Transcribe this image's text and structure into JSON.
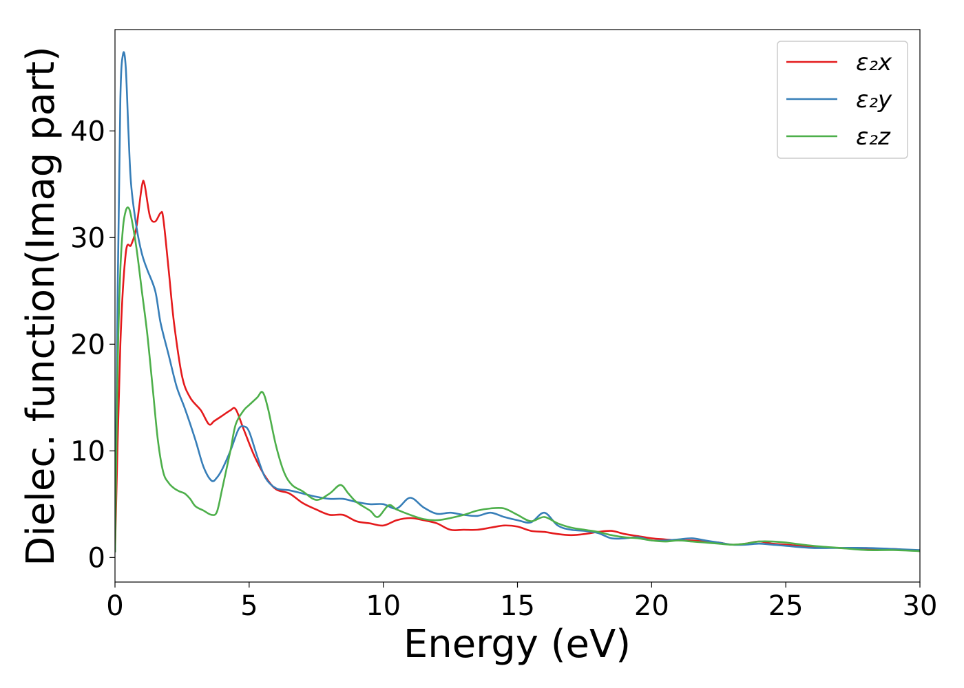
{
  "chart_data": {
    "type": "line",
    "xlabel": "Energy (eV)",
    "ylabel": "Dielec. function(Imag part)",
    "xlim": [
      0,
      30
    ],
    "ylim": [
      -2.3,
      49.5
    ],
    "xticks": [
      0,
      5,
      10,
      15,
      20,
      25,
      30
    ],
    "yticks": [
      0,
      10,
      20,
      30,
      40
    ],
    "grid": false,
    "legend_position": "top-right",
    "series": [
      {
        "name": "ε₂x",
        "color": "#e41a1c",
        "x": [
          0,
          0.2,
          0.4,
          0.6,
          0.8,
          1.0,
          1.1,
          1.3,
          1.5,
          1.7,
          1.8,
          2.0,
          2.2,
          2.5,
          2.8,
          3.2,
          3.5,
          3.7,
          4.0,
          4.3,
          4.5,
          4.8,
          5.2,
          5.6,
          6.0,
          6.5,
          7.0,
          7.5,
          8.0,
          8.5,
          9.0,
          9.5,
          10.0,
          10.5,
          11.0,
          11.5,
          12.0,
          12.5,
          13.0,
          13.5,
          14.0,
          14.5,
          15.0,
          15.5,
          16.0,
          16.5,
          17.0,
          17.5,
          18.0,
          18.5,
          19.0,
          19.5,
          20.0,
          20.5,
          21.0,
          21.5,
          22.0,
          22.5,
          23.0,
          23.5,
          24.0,
          24.5,
          25.0,
          26.0,
          27.0,
          28.0,
          29.0,
          30.0
        ],
        "y": [
          0.5,
          20,
          28.5,
          29.3,
          31,
          34.8,
          35.0,
          32,
          31.5,
          32.3,
          31.8,
          27,
          22,
          17,
          15,
          13.8,
          12.5,
          12.8,
          13.3,
          13.8,
          13.9,
          12,
          9.5,
          7.6,
          6.4,
          6.0,
          5.1,
          4.5,
          4.0,
          4.0,
          3.4,
          3.2,
          3.0,
          3.5,
          3.7,
          3.5,
          3.2,
          2.6,
          2.6,
          2.6,
          2.8,
          3.0,
          2.9,
          2.5,
          2.4,
          2.2,
          2.1,
          2.2,
          2.4,
          2.5,
          2.2,
          2.0,
          1.8,
          1.7,
          1.6,
          1.6,
          1.5,
          1.4,
          1.2,
          1.3,
          1.5,
          1.3,
          1.2,
          1.0,
          0.9,
          0.8,
          0.8,
          0.6
        ]
      },
      {
        "name": "ε₂y",
        "color": "#377eb8",
        "x": [
          0,
          0.1,
          0.2,
          0.3,
          0.4,
          0.5,
          0.6,
          0.8,
          1.0,
          1.2,
          1.5,
          1.7,
          2.0,
          2.3,
          2.6,
          3.0,
          3.3,
          3.6,
          3.8,
          4.0,
          4.3,
          4.6,
          4.8,
          5.0,
          5.3,
          5.6,
          6.0,
          6.5,
          7.0,
          7.5,
          8.0,
          8.5,
          9.0,
          9.5,
          10.0,
          10.5,
          11.0,
          11.5,
          12.0,
          12.5,
          13.0,
          13.5,
          14.0,
          14.5,
          15.0,
          15.5,
          16.0,
          16.5,
          17.0,
          17.5,
          18.0,
          18.5,
          19.0,
          19.5,
          20.0,
          20.5,
          21.0,
          21.5,
          22.0,
          22.5,
          23.0,
          23.5,
          24.0,
          24.5,
          25.0,
          26.0,
          27.0,
          28.0,
          29.0,
          30.0
        ],
        "y": [
          0.5,
          25,
          43,
          47.2,
          46,
          40,
          35,
          31,
          28.5,
          27,
          25,
          22,
          19,
          16,
          14,
          11,
          8.5,
          7.2,
          7.5,
          8.3,
          10,
          12,
          12.3,
          11.8,
          9.5,
          7.5,
          6.5,
          6.3,
          6.0,
          5.7,
          5.5,
          5.5,
          5.2,
          5.0,
          5.0,
          4.6,
          5.6,
          4.7,
          4.1,
          4.2,
          4.0,
          3.9,
          4.2,
          3.8,
          3.5,
          3.3,
          4.2,
          3.0,
          2.6,
          2.5,
          2.3,
          1.8,
          1.8,
          1.9,
          1.6,
          1.6,
          1.7,
          1.8,
          1.6,
          1.4,
          1.2,
          1.2,
          1.3,
          1.2,
          1.1,
          0.9,
          0.9,
          0.9,
          0.8,
          0.7
        ]
      },
      {
        "name": "ε₂z",
        "color": "#4daf4a",
        "x": [
          0,
          0.1,
          0.2,
          0.3,
          0.4,
          0.5,
          0.6,
          0.8,
          1.0,
          1.2,
          1.4,
          1.6,
          1.8,
          2.0,
          2.2,
          2.4,
          2.6,
          2.8,
          3.0,
          3.3,
          3.6,
          3.8,
          4.0,
          4.3,
          4.5,
          4.8,
          5.0,
          5.3,
          5.5,
          5.7,
          6.0,
          6.3,
          6.6,
          7.0,
          7.5,
          8.0,
          8.4,
          8.7,
          9.0,
          9.5,
          9.8,
          10.2,
          10.5,
          11.0,
          11.5,
          12.0,
          12.5,
          13.0,
          13.5,
          14.0,
          14.5,
          15.0,
          15.5,
          16.0,
          16.5,
          17.0,
          17.5,
          18.0,
          18.5,
          19.0,
          19.5,
          20.0,
          20.5,
          21.0,
          21.5,
          22.0,
          22.5,
          23.0,
          23.5,
          24.0,
          24.5,
          25.0,
          26.0,
          27.0,
          28.0,
          29.0,
          30.0
        ],
        "y": [
          0.5,
          18,
          27,
          31,
          32.5,
          32.8,
          32,
          29,
          25,
          21,
          16,
          11,
          8,
          7,
          6.5,
          6.2,
          6.0,
          5.5,
          4.8,
          4.4,
          4.0,
          4.3,
          6.5,
          10,
          12.5,
          13.8,
          14.3,
          15,
          15.5,
          14,
          10.5,
          8,
          6.8,
          6.2,
          5.4,
          6.0,
          6.8,
          6.0,
          5.2,
          4.4,
          3.8,
          4.9,
          4.5,
          4.0,
          3.6,
          3.5,
          3.7,
          4.0,
          4.4,
          4.6,
          4.6,
          4.0,
          3.4,
          3.8,
          3.2,
          2.8,
          2.6,
          2.4,
          2.1,
          1.9,
          1.8,
          1.6,
          1.5,
          1.6,
          1.5,
          1.4,
          1.3,
          1.2,
          1.3,
          1.5,
          1.5,
          1.4,
          1.1,
          0.9,
          0.7,
          0.7,
          0.6
        ]
      }
    ]
  }
}
